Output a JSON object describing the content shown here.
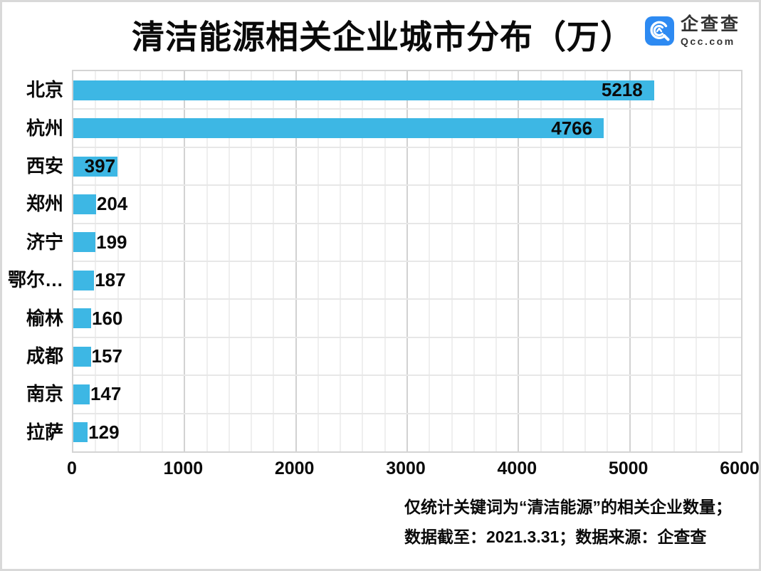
{
  "title": "清洁能源相关企业城市分布（万）",
  "logo": {
    "name": "企查查",
    "domain": "Qcc.com",
    "brand_color": "#2d8af2"
  },
  "chart_data": {
    "type": "bar",
    "orientation": "horizontal",
    "title": "清洁能源相关企业城市分布（万）",
    "categories": [
      "北京",
      "杭州",
      "西安",
      "郑州",
      "济宁",
      "鄂尔…",
      "榆林",
      "成都",
      "南京",
      "拉萨"
    ],
    "values": [
      5218,
      4766,
      397,
      204,
      199,
      187,
      160,
      157,
      147,
      129
    ],
    "xlim": [
      0,
      6000
    ],
    "x_ticks": [
      "0",
      "1000",
      "2000",
      "3000",
      "4000",
      "5000",
      "6000"
    ],
    "minor_grid_step": 200,
    "major_grid_step": 1000,
    "grid": true,
    "legend": false,
    "bar_color": "#3db7e4",
    "value_label_color": "#0a0a0a"
  },
  "footnotes": [
    "仅统计关键词为“清洁能源”的相关企业数量；",
    "数据截至：2021.3.31；数据来源：企查查"
  ]
}
